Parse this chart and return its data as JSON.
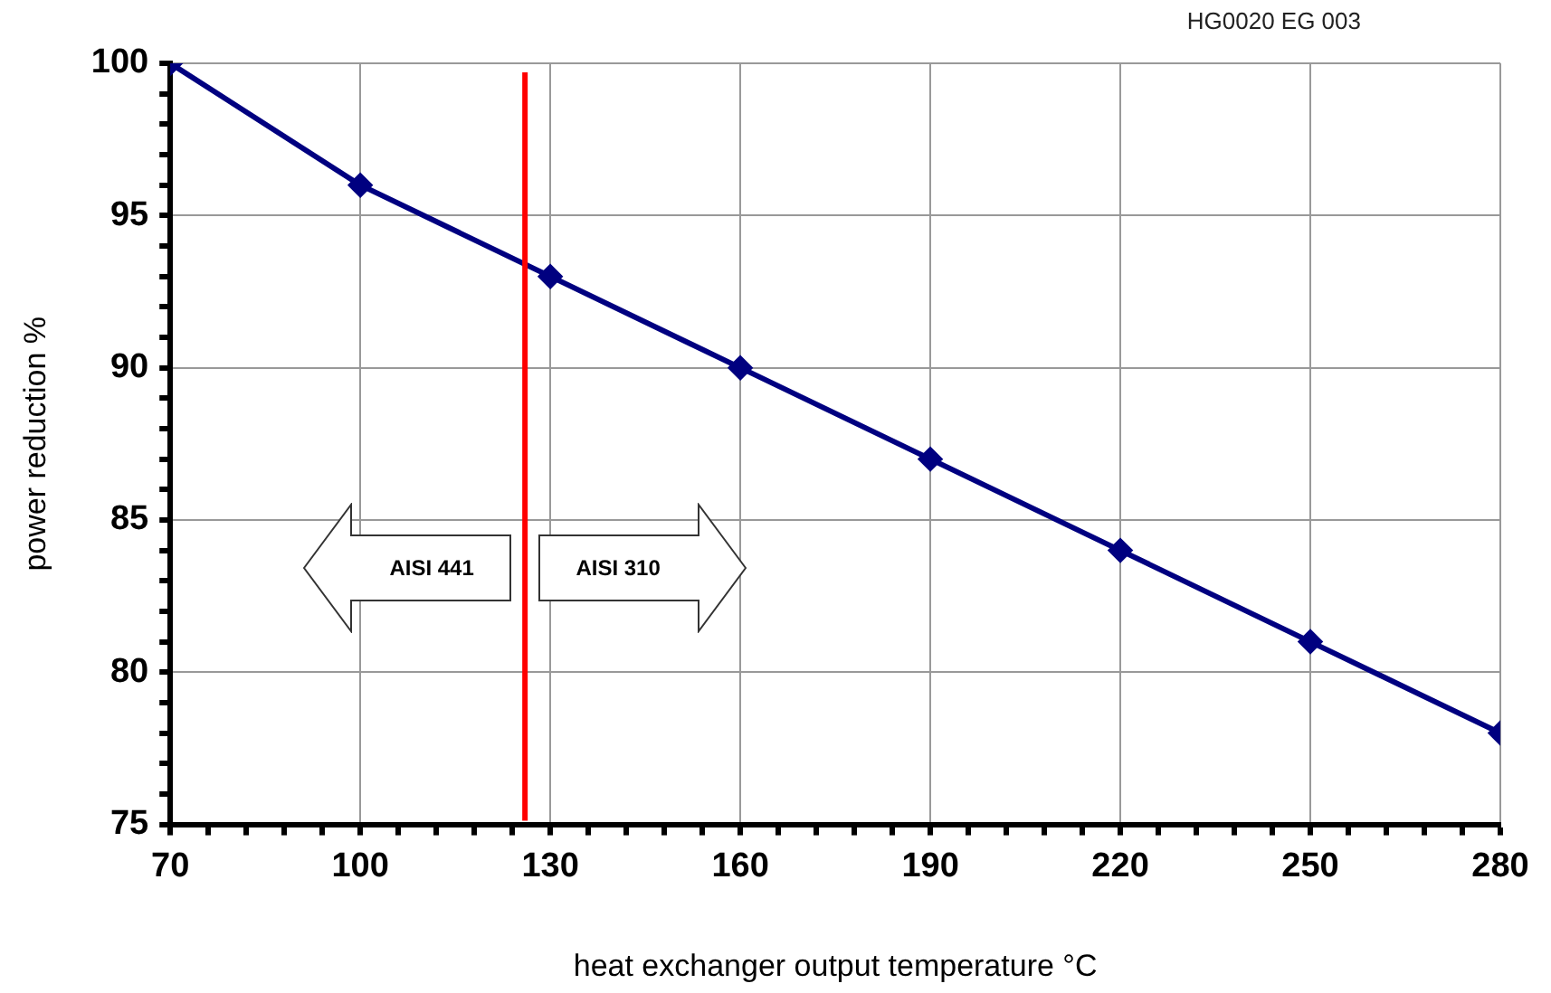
{
  "chart_data": {
    "type": "line",
    "xlabel": "heat exchanger output temperature °C",
    "ylabel": "power reduction %",
    "x": [
      70,
      100,
      130,
      160,
      190,
      220,
      250,
      280
    ],
    "series": [
      {
        "color": "#000080",
        "values": [
          100,
          96,
          93,
          90,
          87,
          84,
          81,
          78
        ]
      }
    ],
    "xlim": [
      70,
      280
    ],
    "ylim": [
      75,
      100
    ],
    "xticks": [
      70,
      {
        "value": 76,
        "label": null
      },
      {
        "value": 82,
        "label": null
      },
      {
        "value": 88,
        "label": null
      },
      {
        "value": 94,
        "label": null
      },
      100,
      {
        "value": 106,
        "label": null
      },
      {
        "value": 112,
        "label": null
      },
      {
        "value": 118,
        "label": null
      },
      {
        "value": 124,
        "label": null
      },
      130,
      {
        "value": 136,
        "label": null
      },
      {
        "value": 142,
        "label": null
      },
      {
        "value": 148,
        "label": null
      },
      {
        "value": 154,
        "label": null
      },
      160,
      {
        "value": 166,
        "label": null
      },
      {
        "value": 172,
        "label": null
      },
      {
        "value": 178,
        "label": null
      },
      {
        "value": 184,
        "label": null
      },
      190,
      {
        "value": 196,
        "label": null
      },
      {
        "value": 202,
        "label": null
      },
      {
        "value": 208,
        "label": null
      },
      {
        "value": 214,
        "label": null
      },
      220,
      {
        "value": 226,
        "label": null
      },
      {
        "value": 232,
        "label": null
      },
      {
        "value": 238,
        "label": null
      },
      {
        "value": 244,
        "label": null
      },
      250,
      {
        "value": 256,
        "label": null
      },
      {
        "value": 262,
        "label": null
      },
      {
        "value": 268,
        "label": null
      },
      {
        "value": 274,
        "label": null
      },
      280
    ],
    "yticks": [
      75,
      {
        "value": 76,
        "label": null
      },
      {
        "value": 77,
        "label": null
      },
      {
        "value": 78,
        "label": null
      },
      {
        "value": 79,
        "label": null
      },
      80,
      {
        "value": 81,
        "label": null
      },
      {
        "value": 82,
        "label": null
      },
      {
        "value": 83,
        "label": null
      },
      {
        "value": 84,
        "label": null
      },
      85,
      {
        "value": 86,
        "label": null
      },
      {
        "value": 87,
        "label": null
      },
      {
        "value": 88,
        "label": null
      },
      {
        "value": 89,
        "label": null
      },
      90,
      {
        "value": 91,
        "label": null
      },
      {
        "value": 92,
        "label": null
      },
      {
        "value": 93,
        "label": null
      },
      {
        "value": 94,
        "label": null
      },
      95,
      {
        "value": 96,
        "label": null
      },
      {
        "value": 97,
        "label": null
      },
      {
        "value": 98,
        "label": null
      },
      {
        "value": 99,
        "label": null
      },
      100
    ],
    "grid": true,
    "marker": "diamond",
    "line_style": "solid",
    "ref_lines": [
      {
        "axis": "x",
        "value": 126,
        "color": "#ff0000"
      }
    ],
    "annotations": [
      "HG0020 EG 003",
      "AISI 441",
      "AISI 310"
    ]
  }
}
